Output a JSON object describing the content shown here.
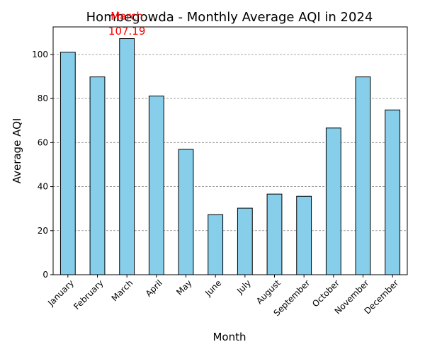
{
  "chart_data": {
    "type": "bar",
    "title": "Hombegowda - Monthly Average AQI in 2024",
    "xlabel": "Month",
    "ylabel": "Average AQI",
    "categories": [
      "January",
      "February",
      "March",
      "April",
      "May",
      "June",
      "July",
      "August",
      "September",
      "October",
      "November",
      "December"
    ],
    "values": [
      101.0,
      89.8,
      107.19,
      81.1,
      56.9,
      27.3,
      30.2,
      36.6,
      35.6,
      66.6,
      89.8,
      74.8
    ],
    "ylim": [
      0,
      112.5
    ],
    "yticks": [
      0,
      20,
      40,
      60,
      80,
      100
    ],
    "grid": "y-dashed",
    "bar_color": "#87ceeb",
    "edge_color": "#000000",
    "annotation": {
      "category": "March",
      "label": "March",
      "value_text": "107.19",
      "color": "#ff0000"
    }
  }
}
